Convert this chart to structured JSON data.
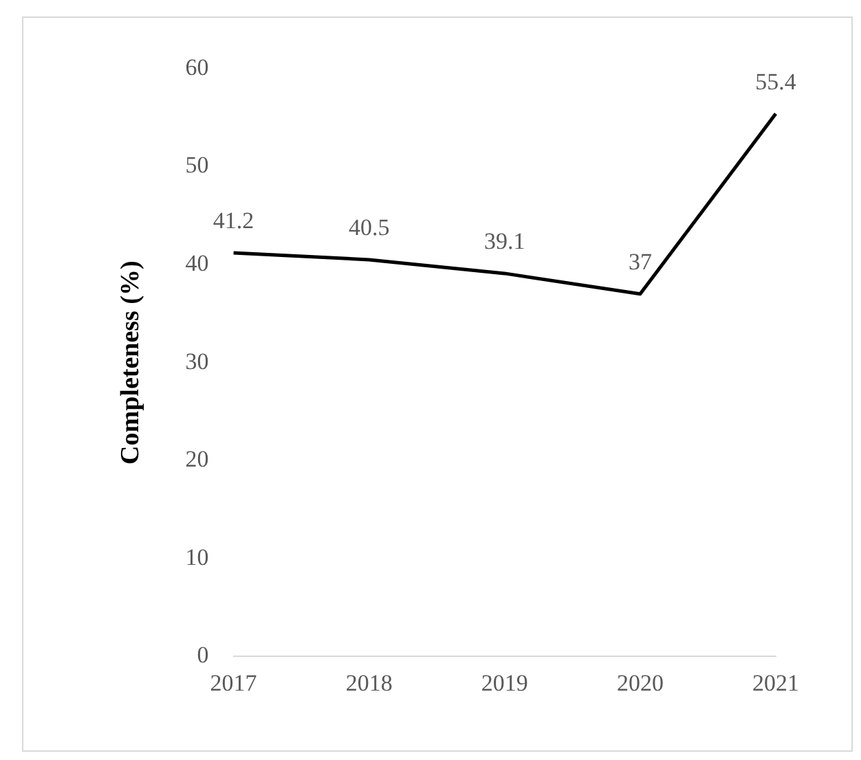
{
  "chart_data": {
    "type": "line",
    "ylabel": "Completeness (%)",
    "categories": [
      "2017",
      "2018",
      "2019",
      "2020",
      "2021"
    ],
    "series": [
      {
        "color": "#000000",
        "values": [
          41.2,
          40.5,
          39.1,
          37,
          55.4
        ]
      }
    ],
    "ylim": [
      0,
      60
    ],
    "yticks": [
      0,
      10,
      20,
      30,
      40,
      50,
      60
    ],
    "grid": false,
    "legend": false,
    "marker": "none",
    "line_style": "solid",
    "data_labels": true
  }
}
